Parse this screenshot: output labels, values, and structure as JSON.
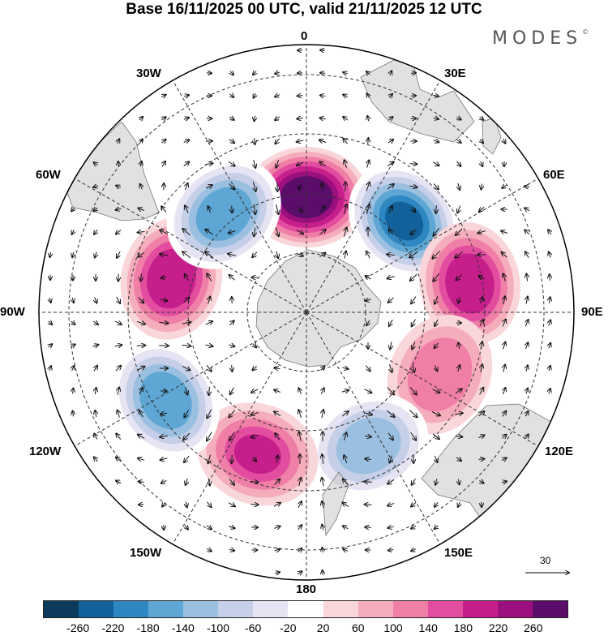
{
  "title": "Base 16/11/2025 00 UTC, valid 21/11/2025 12 UTC",
  "brand": "MODES",
  "brand_mark": "©",
  "map_labels": {
    "lon_0": "0",
    "lon_30e": "30E",
    "lon_60e": "60E",
    "lon_90e": "90E",
    "lon_120e": "120E",
    "lon_150e": "150E",
    "lon_180": "180",
    "lon_150w": "150W",
    "lon_120w": "120W",
    "lon_90w": "90W",
    "lon_60w": "60W",
    "lon_30w": "30W"
  },
  "vector_scale": "30",
  "colorbar": {
    "colors": [
      "#0c3a5c",
      "#12619a",
      "#2f87c2",
      "#5ea6d4",
      "#9bbfe0",
      "#c5cfe8",
      "#e6e4f3",
      "#ffffff",
      "#f9d6da",
      "#f5adbc",
      "#f07fa8",
      "#e34d9f",
      "#c61f8c",
      "#9b107c",
      "#5b0d6a"
    ],
    "ticks": [
      "-260",
      "-220",
      "-180",
      "-140",
      "-100",
      "-60",
      "-20",
      "20",
      "60",
      "100",
      "140",
      "180",
      "220",
      "260"
    ]
  },
  "anomalies": [
    {
      "label": "pos",
      "lon": 0,
      "r": 0.43,
      "value": 250
    },
    {
      "label": "neg",
      "lon": 47,
      "r": 0.5,
      "value": -240
    },
    {
      "label": "pos",
      "lon": 80,
      "r": 0.62,
      "value": 170
    },
    {
      "label": "pos",
      "lon": 115,
      "r": 0.55,
      "value": 110
    },
    {
      "label": "neg",
      "lon": 155,
      "r": 0.55,
      "value": -140
    },
    {
      "label": "pos",
      "lon": -161,
      "r": 0.56,
      "value": 160
    },
    {
      "label": "neg",
      "lon": -122,
      "r": 0.62,
      "value": -170
    },
    {
      "label": "pos",
      "lon": -76,
      "r": 0.52,
      "value": 190
    },
    {
      "label": "neg",
      "lon": -40,
      "r": 0.48,
      "value": -170
    }
  ]
}
